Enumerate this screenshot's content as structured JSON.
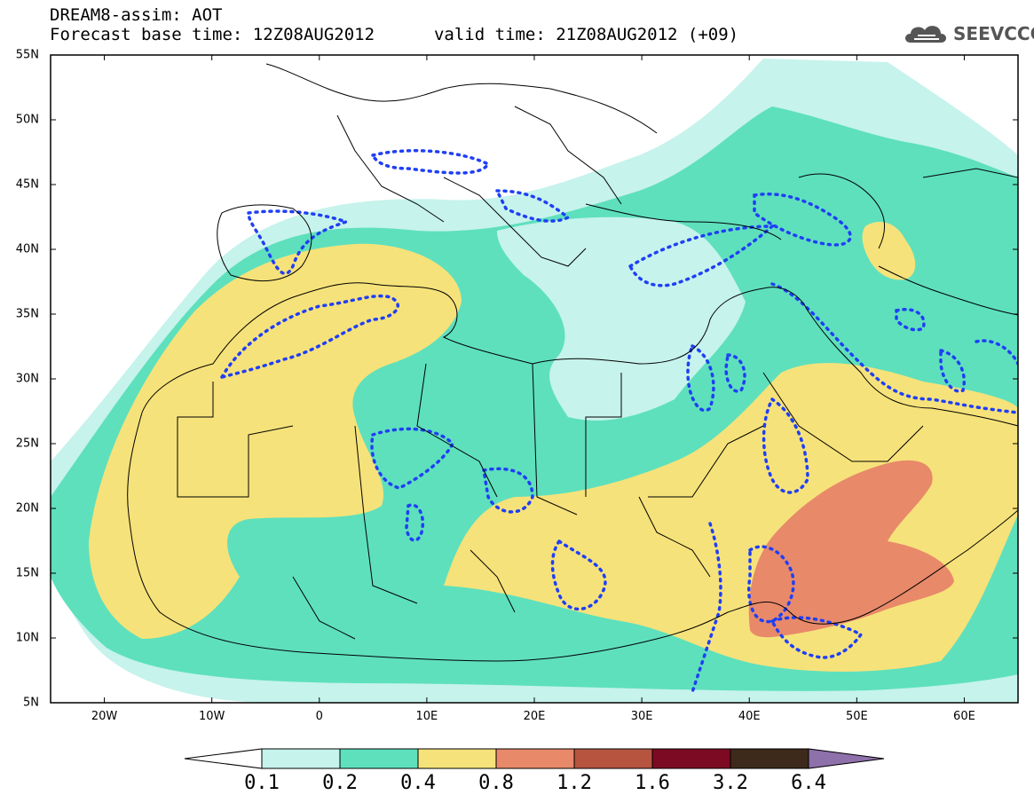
{
  "header": {
    "title": "DREAM8-assim: AOT",
    "base_label": "Forecast base time: 12Z08AUG2012",
    "valid_label": "valid time: 21Z08AUG2012 (+09)"
  },
  "logo": {
    "text": "SEEVCCC",
    "icon": "cloud-icon"
  },
  "map": {
    "lat_labels": [
      "55N",
      "50N",
      "45N",
      "40N",
      "35N",
      "30N",
      "25N",
      "20N",
      "15N",
      "10N",
      "5N"
    ],
    "lon_labels": [
      "20W",
      "10W",
      "0",
      "10E",
      "20E",
      "30E",
      "40E",
      "50E",
      "60E"
    ],
    "colors": {
      "c1": "#c6f3ec",
      "c2": "#5ee0bd",
      "c3": "#f6e27a",
      "c4": "#e8896a",
      "c5": "#b65440",
      "c6": "#7d0a23",
      "c7": "#3d2a1a",
      "c8": "#8e70aa",
      "border": "#000000",
      "contour": "#1f3ff5"
    }
  },
  "colorbar": {
    "labels": [
      "0.1",
      "0.2",
      "0.4",
      "0.8",
      "1.2",
      "1.6",
      "3.2",
      "6.4"
    ],
    "colors": [
      "#c6f3ec",
      "#5ee0bd",
      "#f6e27a",
      "#e8896a",
      "#b65440",
      "#7d0a23",
      "#3d2a1a"
    ],
    "left_arrow_color": "#ffffff",
    "right_arrow_color": "#8e70aa"
  }
}
